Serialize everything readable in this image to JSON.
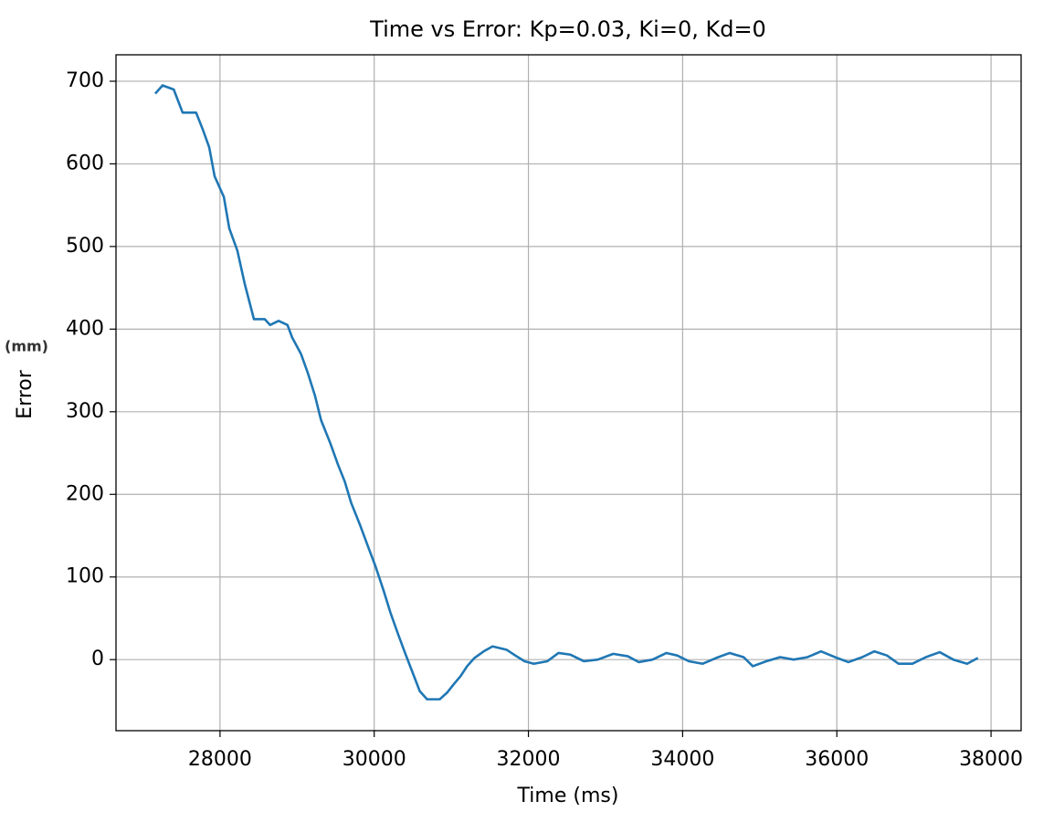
{
  "chart_data": {
    "type": "line",
    "title": "Time vs Error: Kp=0.03, Ki=0, Kd=0",
    "x_label": "Time (ms)",
    "y_label": "Error",
    "y_unit_note": "(mm)",
    "xlim": [
      26651,
      38390
    ],
    "ylim": [
      -86,
      732
    ],
    "xticks": [
      28000,
      30000,
      32000,
      34000,
      36000,
      38000
    ],
    "yticks": [
      0,
      100,
      200,
      300,
      400,
      500,
      600,
      700
    ],
    "grid": true,
    "series": [
      {
        "color": "#1f77b4",
        "x": [
          27160,
          27255,
          27400,
          27515,
          27690,
          27775,
          27860,
          27930,
          28050,
          28120,
          28225,
          28320,
          28440,
          28580,
          28650,
          28760,
          28875,
          28935,
          29050,
          29135,
          29230,
          29310,
          29430,
          29530,
          29620,
          29700,
          29820,
          29915,
          30020,
          30120,
          30210,
          30305,
          30400,
          30495,
          30590,
          30685,
          30850,
          30945,
          31030,
          31120,
          31205,
          31300,
          31420,
          31535,
          31715,
          31830,
          31950,
          32070,
          32245,
          32390,
          32545,
          32720,
          32900,
          33100,
          33290,
          33430,
          33610,
          33790,
          33930,
          34080,
          34260,
          34435,
          34610,
          34790,
          34910,
          35085,
          35265,
          35440,
          35620,
          35795,
          35975,
          36150,
          36330,
          36485,
          36650,
          36800,
          36980,
          37155,
          37335,
          37510,
          37690,
          37830
        ],
        "values": [
          685,
          695,
          690,
          662,
          662,
          642,
          620,
          585,
          560,
          522,
          495,
          455,
          412,
          412,
          405,
          410,
          405,
          390,
          370,
          348,
          320,
          290,
          262,
          236,
          215,
          190,
          162,
          138,
          112,
          84,
          57,
          32,
          8,
          -15,
          -38,
          -48,
          -48,
          -40,
          -30,
          -20,
          -8,
          2,
          10,
          16,
          12,
          5,
          -2,
          -5,
          -2,
          8,
          6,
          -2,
          0,
          7,
          4,
          -3,
          0,
          8,
          5,
          -2,
          -5,
          2,
          8,
          3,
          -8,
          -2,
          3,
          0,
          3,
          10,
          3,
          -3,
          3,
          10,
          5,
          -5,
          -5,
          3,
          9,
          0,
          -5,
          2
        ]
      }
    ]
  }
}
